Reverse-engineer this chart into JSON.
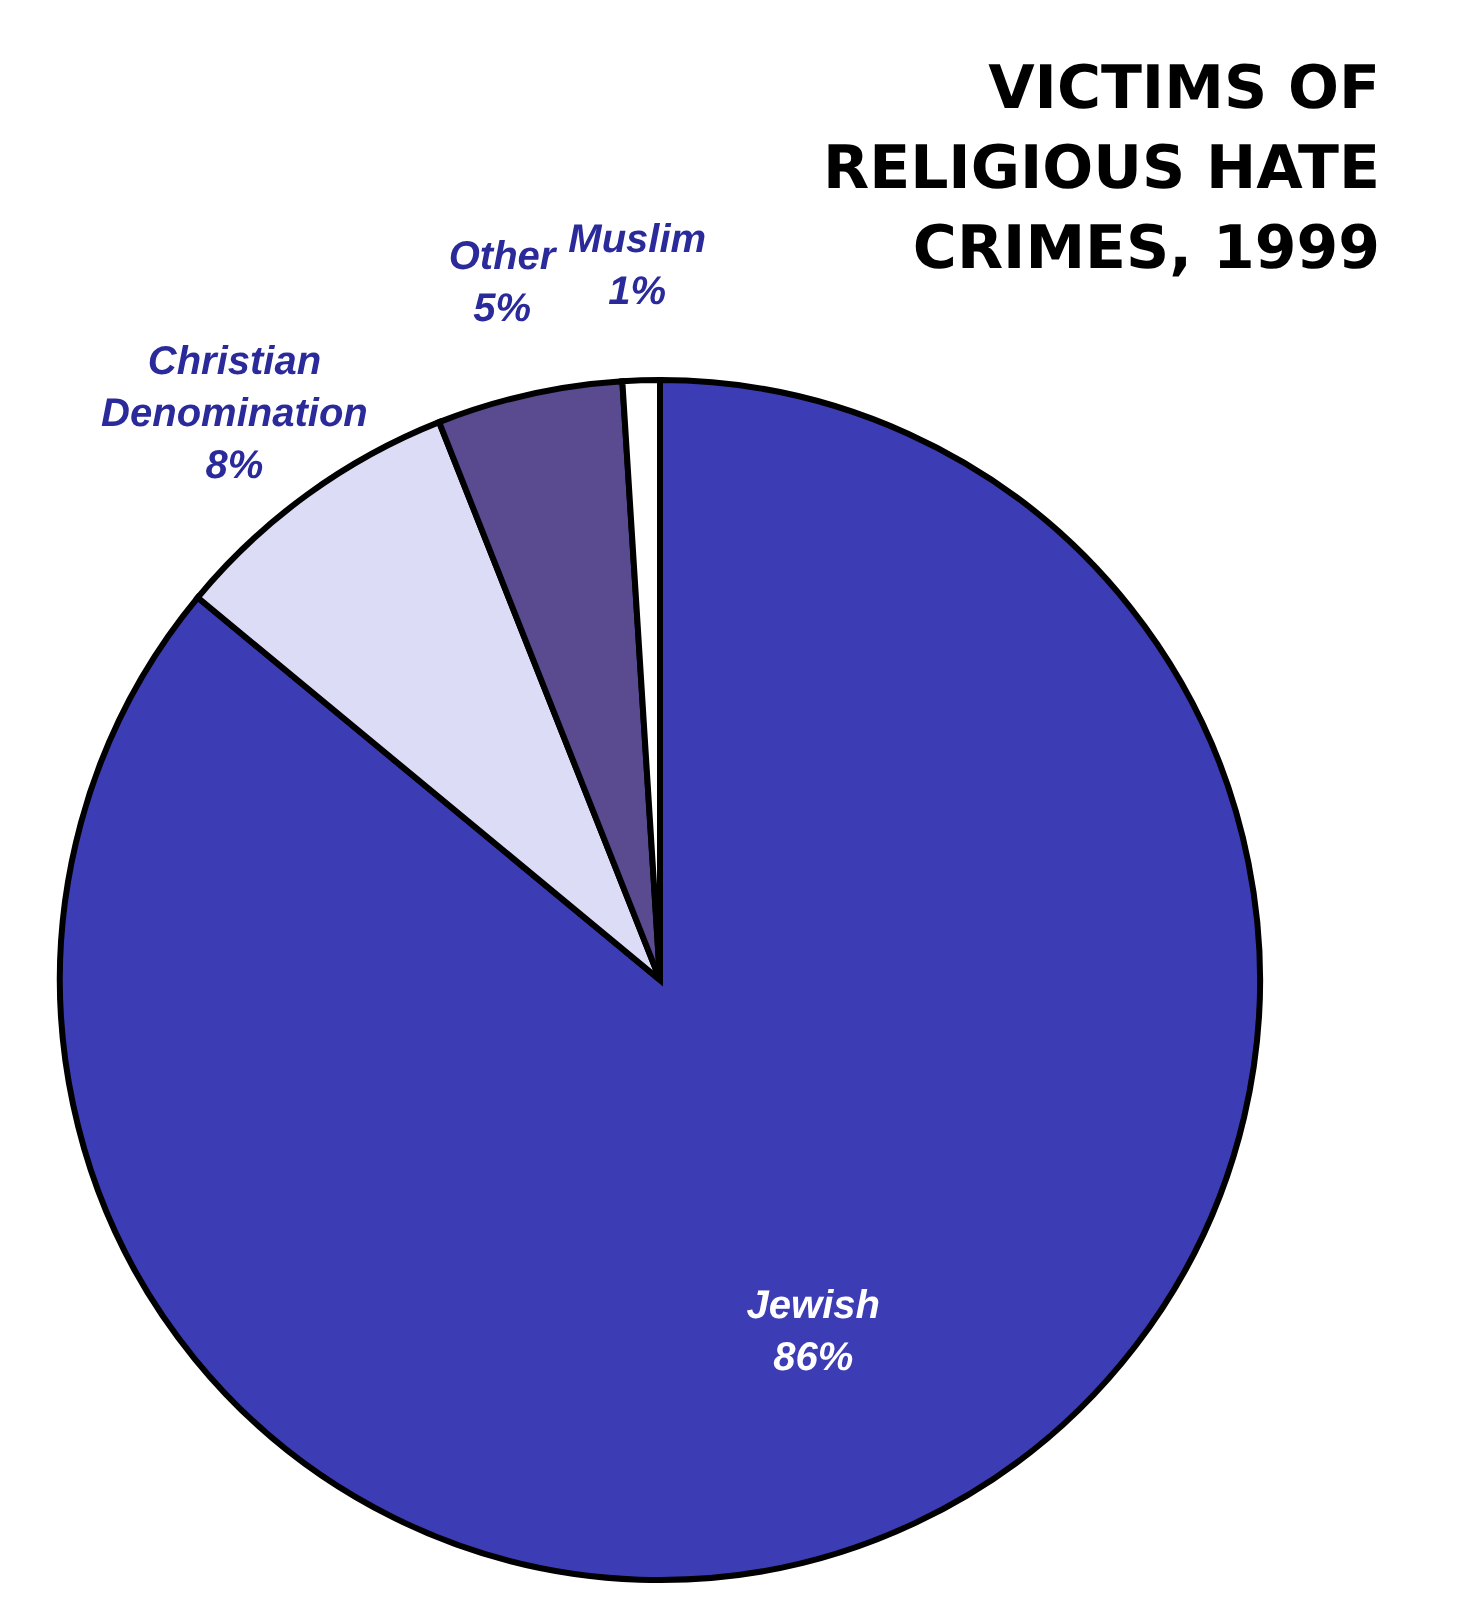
{
  "chart_data": {
    "type": "pie",
    "title": "VICTIMS OF RELIGIOUS HATE CRIMES, 1999",
    "categories": [
      "Jewish",
      "Christian Denomination",
      "Other",
      "Muslim"
    ],
    "values": [
      86,
      8,
      5,
      1
    ],
    "colors": [
      "#3c3cb4",
      "#dcdcf6",
      "#5a4a90",
      "#ffffff"
    ],
    "value_labels": [
      "86%",
      "8%",
      "5%",
      "1%"
    ]
  }
}
